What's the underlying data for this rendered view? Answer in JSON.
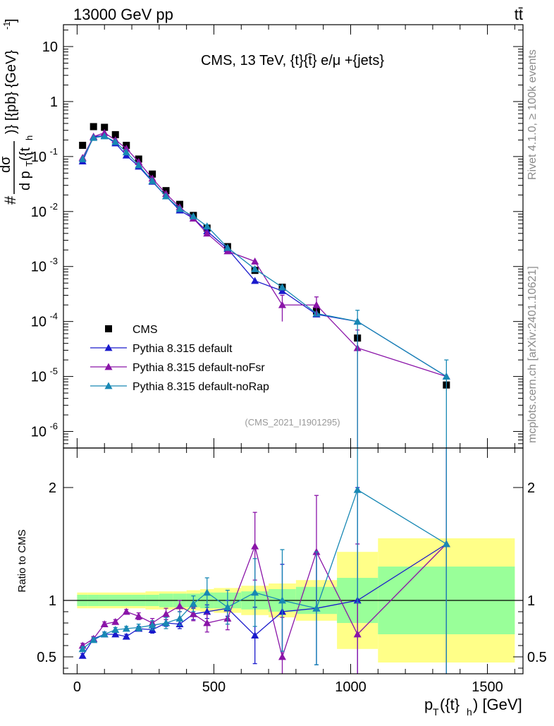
{
  "header": {
    "left": "13000 GeV pp",
    "right": "tt̄"
  },
  "side": {
    "rivet": "Rivet 4.1.0, ≥ 100k events",
    "mcplots": "mcplots.cern.ch [arXiv:2401.10621]"
  },
  "chart_data": [
    {
      "type": "scatter",
      "title": "CMS, 13 TeV, {t}{t̄} e/μ +{jets}",
      "annotation": "(CMS_2021_I1901295)",
      "ylabel": "dσ / d pT({t}h)  [{pb} {GeV}-1]",
      "yscale": "log",
      "ylim": [
        5e-07,
        25
      ],
      "xlim": [
        -50,
        1630
      ],
      "ytick_labels": [
        "10",
        "1",
        "10-1",
        "10-2",
        "10-3",
        "10-4",
        "10-5",
        "10-6"
      ],
      "legend": [
        "CMS",
        "Pythia 8.315 default",
        "Pythia 8.315 default-noFsr",
        "Pythia 8.315 default-noRap"
      ],
      "x": [
        20,
        60,
        100,
        140,
        180,
        225,
        275,
        325,
        375,
        425,
        475,
        550,
        650,
        750,
        875,
        1025,
        1350
      ],
      "series": [
        {
          "name": "CMS",
          "color": "#000000",
          "marker": "square",
          "values": [
            0.16,
            0.35,
            0.34,
            0.25,
            0.16,
            0.09,
            0.048,
            0.024,
            0.0135,
            0.0085,
            0.005,
            0.0023,
            0.00085,
            0.00042,
            0.000155,
            5e-05,
            7e-06
          ]
        },
        {
          "name": "Pythia 8.315 default",
          "color": "#1a1acc",
          "marker": "triangle",
          "values": [
            0.082,
            0.23,
            0.24,
            0.175,
            0.105,
            0.066,
            0.035,
            0.019,
            0.0105,
            0.0075,
            0.0044,
            0.0021,
            0.00055,
            0.00036,
            0.000135,
            0.0001,
            1e-05
          ]
        },
        {
          "name": "Pythia 8.315 default-noFsr",
          "color": "#8a14a8",
          "marker": "triangle",
          "values": [
            0.095,
            0.23,
            0.27,
            0.2,
            0.14,
            0.08,
            0.04,
            0.021,
            0.012,
            0.0075,
            0.004,
            0.0019,
            0.00124,
            0.0002,
            0.0002,
            3.3e-05,
            1e-05
          ]
        },
        {
          "name": "Pythia 8.315 default-noRap",
          "color": "#1888b4",
          "marker": "triangle",
          "values": [
            0.09,
            0.22,
            0.235,
            0.185,
            0.12,
            0.07,
            0.036,
            0.019,
            0.0112,
            0.0082,
            0.0054,
            0.0022,
            0.0009,
            0.00042,
            0.00014,
            0.0001,
            1e-05
          ]
        }
      ]
    },
    {
      "type": "line",
      "ylabel": "Ratio to CMS",
      "xlabel": "pT({t}h) [GeV]",
      "xlim": [
        -50,
        1630
      ],
      "ylim": [
        0.35,
        2.35
      ],
      "xticks": [
        0,
        500,
        1000,
        1500
      ],
      "yticks": [
        0.5,
        1,
        2
      ],
      "x": [
        20,
        60,
        100,
        140,
        180,
        225,
        275,
        325,
        375,
        425,
        475,
        550,
        650,
        750,
        875,
        1025,
        1350
      ],
      "band_edges": [
        0,
        40,
        80,
        120,
        160,
        200,
        250,
        300,
        350,
        400,
        450,
        500,
        600,
        700,
        800,
        950,
        1100,
        1600
      ],
      "band_inner": [
        0.05,
        0.05,
        0.05,
        0.05,
        0.05,
        0.05,
        0.05,
        0.06,
        0.06,
        0.06,
        0.07,
        0.07,
        0.08,
        0.1,
        0.12,
        0.2,
        0.3
      ],
      "band_outer": [
        0.07,
        0.07,
        0.07,
        0.07,
        0.07,
        0.07,
        0.08,
        0.08,
        0.08,
        0.09,
        0.1,
        0.11,
        0.13,
        0.15,
        0.18,
        0.43,
        0.55
      ],
      "series": [
        {
          "name": "Pythia 8.315 default",
          "color": "#1a1acc",
          "values": [
            0.51,
            0.66,
            0.7,
            0.7,
            0.68,
            0.75,
            0.74,
            0.8,
            0.79,
            0.88,
            0.9,
            0.93,
            0.69,
            0.9,
            0.93,
            1.0,
            1.5
          ],
          "errors": [
            0.02,
            0.02,
            0.02,
            0.02,
            0.02,
            0.02,
            0.03,
            0.03,
            0.04,
            0.05,
            0.06,
            0.07,
            0.25,
            0.42,
            0.5,
            1.0,
            1.5
          ]
        },
        {
          "name": "Pythia 8.315 default-noFsr",
          "color": "#8a14a8",
          "values": [
            0.6,
            0.66,
            0.79,
            0.81,
            0.9,
            0.86,
            0.8,
            0.88,
            0.95,
            0.88,
            0.8,
            0.84,
            1.48,
            0.5,
            1.43,
            0.7,
            1.5
          ],
          "errors": [
            0.02,
            0.02,
            0.02,
            0.02,
            0.02,
            0.03,
            0.04,
            0.05,
            0.05,
            0.06,
            0.08,
            0.1,
            0.3,
            0.35,
            0.5,
            0.8,
            1.5
          ]
        },
        {
          "name": "Pythia 8.315 default-noRap",
          "color": "#1888b4",
          "values": [
            0.57,
            0.65,
            0.7,
            0.74,
            0.75,
            0.76,
            0.78,
            0.8,
            0.84,
            0.97,
            1.07,
            0.94,
            1.07,
            1.0,
            0.93,
            1.98,
            1.5
          ],
          "errors": [
            0.02,
            0.02,
            0.02,
            0.02,
            0.02,
            0.03,
            0.04,
            0.05,
            0.06,
            0.07,
            0.13,
            0.15,
            0.3,
            0.45,
            0.5,
            1.0,
            1.5
          ]
        }
      ]
    }
  ]
}
